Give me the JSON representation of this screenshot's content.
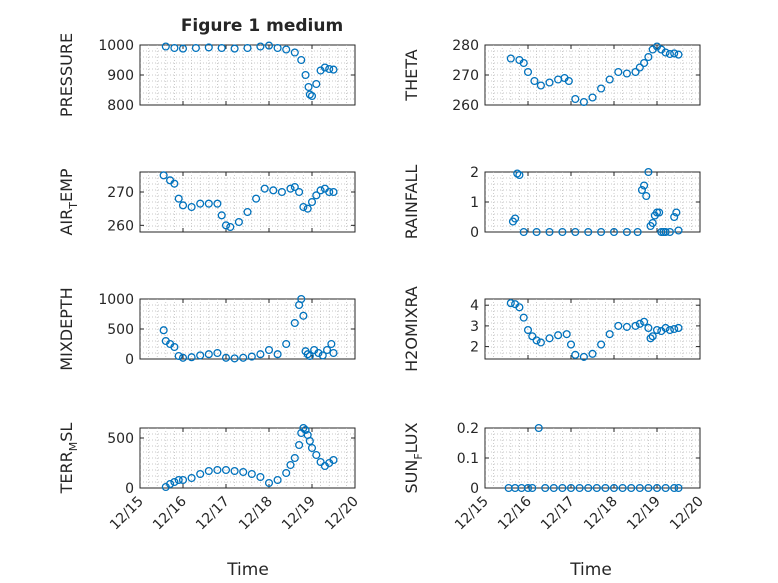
{
  "figure": {
    "title": "Figure 1 medium",
    "xlabel": "Time",
    "marker_color": "#0072bd",
    "x_tick_labels": [
      "12/15",
      "12/16",
      "12/17",
      "12/18",
      "12/19",
      "12/20"
    ]
  },
  "chart_data": [
    {
      "type": "scatter",
      "id": "pressure",
      "ylabel": "PRESSURE",
      "ylabel_sub": "",
      "xlim": [
        0,
        5
      ],
      "ylim": [
        800,
        1000
      ],
      "yticks": [
        800,
        900,
        1000
      ],
      "ytick_labels": [
        "800",
        "900",
        "1000"
      ],
      "series": [
        {
          "x": [
            0.6,
            0.8,
            1.0,
            1.3,
            1.6,
            1.9,
            2.2,
            2.5,
            2.8,
            3.0,
            3.2,
            3.4,
            3.6,
            3.75,
            3.85,
            3.92,
            3.95,
            4.0,
            4.1,
            4.2,
            4.3,
            4.4,
            4.5
          ],
          "y": [
            995,
            990,
            988,
            990,
            992,
            990,
            988,
            990,
            995,
            998,
            990,
            985,
            975,
            950,
            900,
            860,
            835,
            830,
            870,
            915,
            925,
            920,
            918
          ]
        }
      ]
    },
    {
      "type": "scatter",
      "id": "theta",
      "ylabel": "THETA",
      "ylabel_sub": "",
      "xlim": [
        0,
        5
      ],
      "ylim": [
        260,
        280
      ],
      "yticks": [
        260,
        270,
        280
      ],
      "ytick_labels": [
        "260",
        "270",
        "280"
      ],
      "series": [
        {
          "x": [
            0.6,
            0.8,
            0.9,
            1.0,
            1.15,
            1.3,
            1.5,
            1.7,
            1.85,
            1.95,
            2.1,
            2.3,
            2.5,
            2.7,
            2.9,
            3.1,
            3.3,
            3.5,
            3.6,
            3.7,
            3.8,
            3.9,
            4.0,
            4.1,
            4.2,
            4.3,
            4.4,
            4.5
          ],
          "y": [
            275.5,
            275,
            274,
            271,
            268,
            266.5,
            267.5,
            268.5,
            269,
            268,
            262,
            261,
            262.5,
            265.5,
            268.5,
            271,
            270.5,
            271,
            272.5,
            274,
            276,
            278.5,
            279.5,
            278.5,
            277.5,
            277,
            277.2,
            276.8
          ]
        }
      ]
    },
    {
      "type": "scatter",
      "id": "airtemp",
      "ylabel": "AIR",
      "ylabel_sub": "T",
      "ylabel_post": "EMP",
      "xlim": [
        0,
        5
      ],
      "ylim": [
        258,
        276
      ],
      "yticks": [
        260,
        270
      ],
      "ytick_labels": [
        "260",
        "270"
      ],
      "series": [
        {
          "x": [
            0.55,
            0.7,
            0.8,
            0.9,
            1.0,
            1.2,
            1.4,
            1.6,
            1.8,
            1.9,
            2.0,
            2.1,
            2.3,
            2.5,
            2.7,
            2.9,
            3.1,
            3.3,
            3.5,
            3.6,
            3.7,
            3.8,
            3.9,
            4.0,
            4.1,
            4.2,
            4.3,
            4.4,
            4.5
          ],
          "y": [
            275,
            273.5,
            272.5,
            268,
            266,
            265.5,
            266.5,
            266.5,
            266.5,
            263,
            260,
            259.5,
            261,
            264,
            268,
            271,
            270.5,
            270,
            271,
            271.5,
            270,
            265.5,
            265,
            267,
            269,
            270.5,
            271,
            270,
            270
          ]
        }
      ]
    },
    {
      "type": "scatter",
      "id": "rainfall",
      "ylabel": "RAINFALL",
      "ylabel_sub": "",
      "xlim": [
        0,
        5
      ],
      "ylim": [
        0,
        2
      ],
      "yticks": [
        0,
        1,
        2
      ],
      "ytick_labels": [
        "0",
        "1",
        "2"
      ],
      "series": [
        {
          "x": [
            0.65,
            0.7,
            0.75,
            0.8,
            0.9,
            1.2,
            1.5,
            1.8,
            2.1,
            2.4,
            2.7,
            3.0,
            3.3,
            3.55,
            3.65,
            3.7,
            3.75,
            3.8,
            3.85,
            3.9,
            3.95,
            4.0,
            4.05,
            4.1,
            4.15,
            4.2,
            4.3,
            4.4,
            4.45,
            4.5
          ],
          "y": [
            0.35,
            0.45,
            1.95,
            1.9,
            0,
            0,
            0,
            0,
            0,
            0,
            0,
            0,
            0,
            0,
            1.4,
            1.55,
            1.2,
            2.0,
            0.2,
            0.3,
            0.55,
            0.65,
            0.65,
            0,
            0,
            0,
            0,
            0.5,
            0.65,
            0.05
          ]
        }
      ]
    },
    {
      "type": "scatter",
      "id": "mixdepth",
      "ylabel": "MIXDEPTH",
      "ylabel_sub": "",
      "xlim": [
        0,
        5
      ],
      "ylim": [
        0,
        1000
      ],
      "yticks": [
        0,
        500,
        1000
      ],
      "ytick_labels": [
        "0",
        "500",
        "1000"
      ],
      "series": [
        {
          "x": [
            0.55,
            0.6,
            0.7,
            0.8,
            0.9,
            1.0,
            1.2,
            1.4,
            1.6,
            1.8,
            2.0,
            2.2,
            2.4,
            2.6,
            2.8,
            3.0,
            3.2,
            3.4,
            3.6,
            3.7,
            3.75,
            3.8,
            3.85,
            3.9,
            3.95,
            4.05,
            4.15,
            4.25,
            4.35,
            4.45,
            4.5
          ],
          "y": [
            480,
            300,
            250,
            200,
            50,
            20,
            30,
            60,
            80,
            100,
            20,
            10,
            20,
            40,
            80,
            150,
            80,
            250,
            600,
            900,
            1000,
            720,
            130,
            80,
            50,
            150,
            100,
            60,
            150,
            250,
            100
          ]
        }
      ]
    },
    {
      "type": "scatter",
      "id": "h2omixra",
      "ylabel": "H2OMIXRA",
      "ylabel_sub": "",
      "xlim": [
        0,
        5
      ],
      "ylim": [
        1.4,
        4.3
      ],
      "yticks": [
        2,
        3,
        4
      ],
      "ytick_labels": [
        "2",
        "3",
        "4"
      ],
      "series": [
        {
          "x": [
            0.6,
            0.7,
            0.8,
            0.9,
            1.0,
            1.1,
            1.2,
            1.3,
            1.5,
            1.7,
            1.9,
            2.0,
            2.1,
            2.3,
            2.5,
            2.7,
            2.9,
            3.1,
            3.3,
            3.5,
            3.6,
            3.7,
            3.8,
            3.85,
            3.9,
            4.0,
            4.1,
            4.2,
            4.3,
            4.4,
            4.5
          ],
          "y": [
            4.1,
            4.05,
            3.9,
            3.4,
            2.8,
            2.5,
            2.3,
            2.2,
            2.4,
            2.55,
            2.6,
            2.1,
            1.6,
            1.5,
            1.65,
            2.1,
            2.6,
            3.0,
            2.95,
            3.0,
            3.1,
            3.2,
            2.9,
            2.4,
            2.5,
            2.8,
            2.75,
            2.9,
            2.8,
            2.85,
            2.9
          ]
        }
      ]
    },
    {
      "type": "scatter",
      "id": "terrmsl",
      "ylabel": "TERR",
      "ylabel_sub": "M",
      "ylabel_post": "SL",
      "xlim": [
        0,
        5
      ],
      "ylim": [
        0,
        600
      ],
      "yticks": [
        0,
        500
      ],
      "ytick_labels": [
        "0",
        "500"
      ],
      "series": [
        {
          "x": [
            0.6,
            0.7,
            0.8,
            0.9,
            1.0,
            1.2,
            1.4,
            1.6,
            1.8,
            2.0,
            2.2,
            2.4,
            2.6,
            2.8,
            3.0,
            3.2,
            3.4,
            3.5,
            3.6,
            3.7,
            3.75,
            3.8,
            3.85,
            3.9,
            3.95,
            4.0,
            4.1,
            4.2,
            4.3,
            4.4,
            4.5
          ],
          "y": [
            10,
            40,
            60,
            80,
            80,
            100,
            140,
            170,
            180,
            180,
            170,
            160,
            140,
            110,
            50,
            80,
            150,
            230,
            300,
            430,
            550,
            600,
            580,
            530,
            470,
            400,
            330,
            260,
            220,
            250,
            280
          ]
        }
      ]
    },
    {
      "type": "scatter",
      "id": "sunflux",
      "ylabel": "SUN",
      "ylabel_sub": "F",
      "ylabel_post": "LUX",
      "xlim": [
        0,
        5
      ],
      "ylim": [
        0,
        0.2
      ],
      "yticks": [
        0,
        0.1,
        0.2
      ],
      "ytick_labels": [
        "0",
        "0.1",
        "0.2"
      ],
      "series": [
        {
          "x": [
            0.55,
            0.7,
            0.85,
            1.0,
            1.1,
            1.25,
            1.4,
            1.6,
            1.8,
            2.0,
            2.2,
            2.4,
            2.6,
            2.8,
            3.0,
            3.2,
            3.4,
            3.6,
            3.8,
            4.0,
            4.2,
            4.4,
            4.5
          ],
          "y": [
            0,
            0,
            0,
            0,
            0,
            0.2,
            0,
            0,
            0,
            0,
            0,
            0,
            0,
            0,
            0,
            0,
            0,
            0,
            0,
            0,
            0,
            0,
            0
          ]
        }
      ]
    }
  ]
}
